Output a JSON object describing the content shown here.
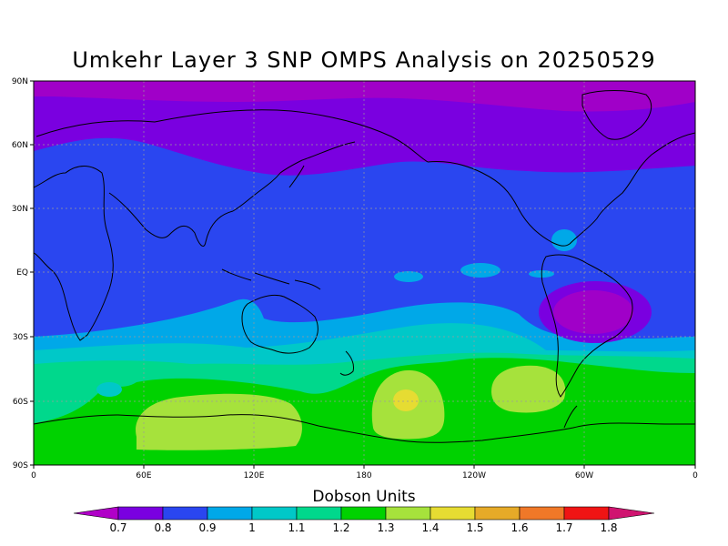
{
  "title": "Umkehr Layer 3 SNP OMPS Analysis on 20250529",
  "colorbar": {
    "title": "Dobson Units",
    "labels": [
      "0.7",
      "0.8",
      "0.9",
      "1",
      "1.1",
      "1.2",
      "1.3",
      "1.4",
      "1.5",
      "1.6",
      "1.7",
      "1.8"
    ],
    "colors": [
      "#b000c8",
      "#7a00e0",
      "#2a46f0",
      "#00a8e8",
      "#00c8c8",
      "#00d88c",
      "#00d200",
      "#a6e23c",
      "#e6dc32",
      "#e6aa28",
      "#f07828",
      "#f01414",
      "#d01470"
    ]
  },
  "map": {
    "lat_labels": [
      "90N",
      "60N",
      "30N",
      "EQ",
      "30S",
      "60S",
      "90S"
    ],
    "lon_labels": [
      "0",
      "60E",
      "120E",
      "180",
      "120W",
      "60W",
      "0"
    ],
    "colors": {
      "polar_purple": "#a000c8",
      "violet": "#7a00e0",
      "blue": "#2a46f0",
      "light_blue": "#00a8e8",
      "cyan": "#00c8c8",
      "teal_green": "#00d88c",
      "green": "#00d200",
      "yellow_green": "#a6e23c",
      "yellow": "#e6dc32",
      "coastline": "#000000",
      "grid": "#9a9a9a"
    }
  }
}
